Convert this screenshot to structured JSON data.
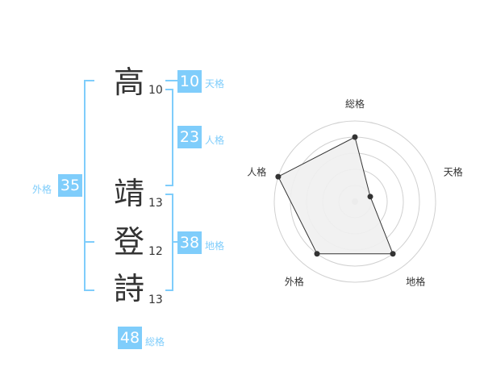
{
  "name": {
    "chars": [
      {
        "char": "高",
        "strokes": "10"
      },
      {
        "char": "靖",
        "strokes": "13"
      },
      {
        "char": "登",
        "strokes": "12"
      },
      {
        "char": "詩",
        "strokes": "13"
      }
    ]
  },
  "kaku": {
    "tenkaku": {
      "label": "天格",
      "value": "10"
    },
    "jinkaku": {
      "label": "人格",
      "value": "23"
    },
    "chikaku": {
      "label": "地格",
      "value": "38"
    },
    "gaikaku": {
      "label": "外格",
      "value": "35"
    },
    "soukaku": {
      "label": "総格",
      "value": "48"
    }
  },
  "accent": "#7fcdfb",
  "chart_data": {
    "type": "radar",
    "axes": [
      "総格",
      "天格",
      "地格",
      "外格",
      "人格"
    ],
    "values": [
      4,
      1,
      4,
      4,
      5
    ],
    "range": [
      0,
      5
    ],
    "grid": "concentric circles",
    "fill": "#f0f0f0",
    "line": "#333333"
  }
}
